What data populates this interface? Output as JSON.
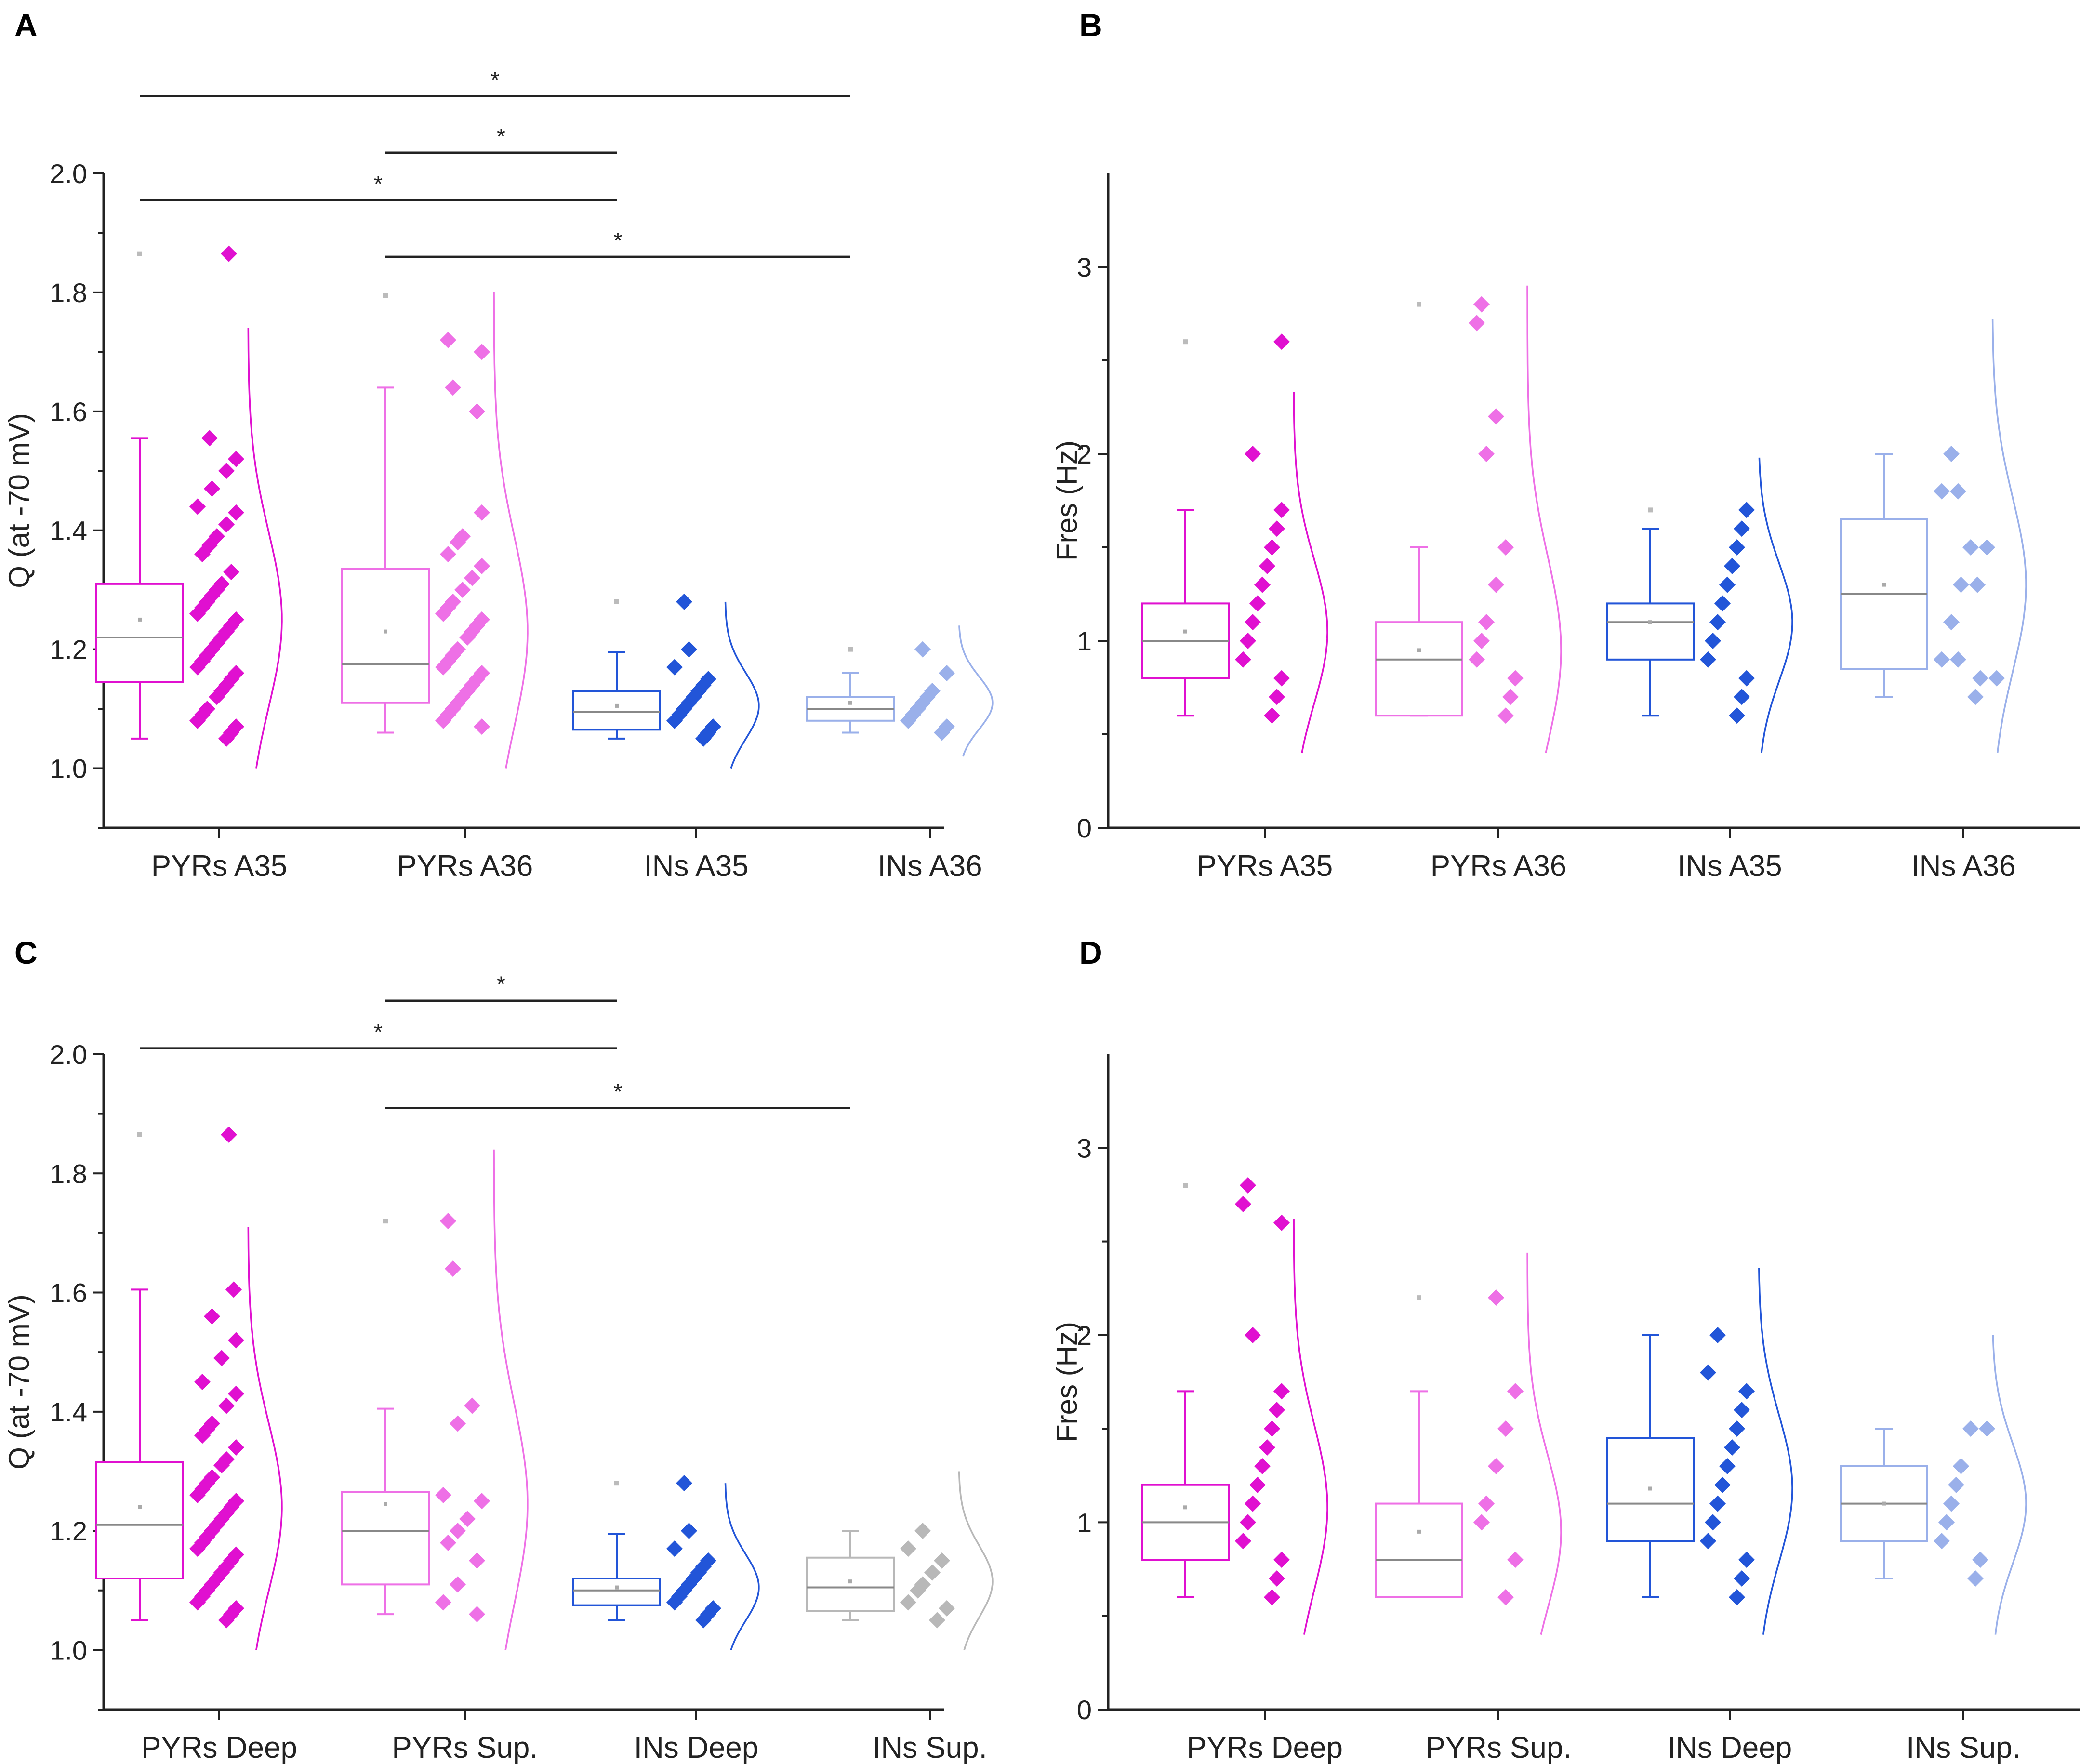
{
  "figure": {
    "panels": [
      {
        "label": "A",
        "chart_data": {
          "type": "box",
          "ylabel": "Q (at -70 mV)",
          "ylim": [
            0.9,
            2.0
          ],
          "yticks": [
            1.0,
            1.2,
            1.4,
            1.6,
            1.8,
            2.0
          ],
          "tick_decimals": 1,
          "categories": [
            "PYRs A35",
            "PYRs A36",
            "INs A35",
            "INs A36"
          ],
          "series": [
            {
              "name": "PYRs A35",
              "color": "#e010d0",
              "whisker_low": 1.05,
              "q1": 1.145,
              "median": 1.22,
              "q3": 1.31,
              "whisker_high": 1.555,
              "mean": 1.25,
              "outliers": [
                1.865
              ],
              "density_range": [
                1.0,
                1.74
              ],
              "points": [
                1.865,
                1.555,
                1.52,
                1.5,
                1.47,
                1.44,
                1.43,
                1.41,
                1.39,
                1.375,
                1.36,
                1.33,
                1.31,
                1.3,
                1.29,
                1.28,
                1.27,
                1.26,
                1.25,
                1.24,
                1.23,
                1.22,
                1.21,
                1.2,
                1.19,
                1.18,
                1.17,
                1.16,
                1.15,
                1.14,
                1.13,
                1.12,
                1.1,
                1.09,
                1.08,
                1.07,
                1.06,
                1.05
              ]
            },
            {
              "name": "PYRs A36",
              "color": "#ee70e6",
              "whisker_low": 1.06,
              "q1": 1.11,
              "median": 1.175,
              "q3": 1.335,
              "whisker_high": 1.64,
              "mean": 1.23,
              "outliers": [
                1.795
              ],
              "density_range": [
                1.0,
                1.8
              ],
              "points": [
                1.72,
                1.7,
                1.64,
                1.6,
                1.43,
                1.39,
                1.38,
                1.36,
                1.34,
                1.32,
                1.3,
                1.28,
                1.27,
                1.26,
                1.25,
                1.24,
                1.23,
                1.22,
                1.2,
                1.19,
                1.18,
                1.17,
                1.16,
                1.15,
                1.14,
                1.13,
                1.12,
                1.11,
                1.1,
                1.09,
                1.08,
                1.07
              ]
            },
            {
              "name": "INs A35",
              "color": "#2255d8",
              "whisker_low": 1.05,
              "q1": 1.065,
              "median": 1.095,
              "q3": 1.13,
              "whisker_high": 1.195,
              "mean": 1.105,
              "outliers": [
                1.28
              ],
              "density_range": [
                1.0,
                1.28
              ],
              "points": [
                1.28,
                1.2,
                1.17,
                1.15,
                1.14,
                1.13,
                1.12,
                1.11,
                1.1,
                1.09,
                1.08,
                1.07,
                1.06,
                1.055,
                1.05
              ]
            },
            {
              "name": "INs A36",
              "color": "#9ab0ea",
              "whisker_low": 1.06,
              "q1": 1.08,
              "median": 1.1,
              "q3": 1.12,
              "whisker_high": 1.16,
              "mean": 1.11,
              "outliers": [
                1.2
              ],
              "density_range": [
                1.02,
                1.24
              ],
              "points": [
                1.2,
                1.16,
                1.13,
                1.12,
                1.11,
                1.1,
                1.09,
                1.08,
                1.07,
                1.06
              ]
            }
          ],
          "significance": [
            {
              "from": "PYRs A35",
              "to": "INs A36",
              "y": 2.13,
              "label": "*"
            },
            {
              "from": "PYRs A36",
              "to": "INs A35",
              "y": 2.035,
              "label": "*"
            },
            {
              "from": "PYRs A35",
              "to": "INs A35",
              "y": 1.955,
              "label": "*"
            },
            {
              "from": "PYRs A36",
              "to": "INs A36",
              "y": 1.86,
              "label": "*"
            }
          ]
        }
      },
      {
        "label": "B",
        "chart_data": {
          "type": "box",
          "ylabel": "Fres (Hz)",
          "ylim": [
            0,
            3.5
          ],
          "yticks": [
            0,
            1,
            2,
            3
          ],
          "tick_decimals": 0,
          "categories": [
            "PYRs A35",
            "PYRs A36",
            "INs A35",
            "INs A36"
          ],
          "series": [
            {
              "name": "PYRs A35",
              "color": "#e010d0",
              "whisker_low": 0.6,
              "q1": 0.8,
              "median": 1.0,
              "q3": 1.2,
              "whisker_high": 1.7,
              "mean": 1.05,
              "outliers": [
                2.6
              ],
              "density_range": [
                0.4,
                2.33
              ],
              "points": [
                2.6,
                2.0,
                1.7,
                1.6,
                1.5,
                1.4,
                1.3,
                1.2,
                1.1,
                1.0,
                0.9,
                0.8,
                0.7,
                0.6
              ]
            },
            {
              "name": "PYRs A36",
              "color": "#ee70e6",
              "whisker_low": 0.6,
              "q1": 0.6,
              "median": 0.9,
              "q3": 1.1,
              "whisker_high": 1.5,
              "mean": 0.95,
              "outliers": [
                2.8
              ],
              "density_range": [
                0.4,
                2.9
              ],
              "points": [
                2.8,
                2.7,
                2.2,
                2.0,
                1.5,
                1.3,
                1.1,
                1.0,
                0.9,
                0.8,
                0.7,
                0.6
              ]
            },
            {
              "name": "INs A35",
              "color": "#2255d8",
              "whisker_low": 0.6,
              "q1": 0.9,
              "median": 1.1,
              "q3": 1.2,
              "whisker_high": 1.6,
              "mean": 1.1,
              "outliers": [
                1.7
              ],
              "density_range": [
                0.4,
                1.98
              ],
              "points": [
                1.7,
                1.6,
                1.5,
                1.4,
                1.3,
                1.2,
                1.1,
                1.0,
                0.9,
                0.8,
                0.7,
                0.6
              ]
            },
            {
              "name": "INs A36",
              "color": "#9ab0ea",
              "whisker_low": 0.7,
              "q1": 0.85,
              "median": 1.25,
              "q3": 1.65,
              "whisker_high": 2.0,
              "mean": 1.3,
              "outliers": [],
              "density_range": [
                0.4,
                2.72
              ],
              "points": [
                2.0,
                1.8,
                1.8,
                1.5,
                1.5,
                1.3,
                1.3,
                1.1,
                0.9,
                0.9,
                0.8,
                0.8,
                0.7
              ]
            }
          ],
          "significance": []
        }
      },
      {
        "label": "C",
        "chart_data": {
          "type": "box",
          "ylabel": "Q (at -70 mV)",
          "ylim": [
            0.9,
            2.0
          ],
          "yticks": [
            1.0,
            1.2,
            1.4,
            1.6,
            1.8,
            2.0
          ],
          "tick_decimals": 1,
          "categories": [
            "PYRs Deep",
            "PYRs Sup.",
            "INs Deep",
            "INs Sup."
          ],
          "series": [
            {
              "name": "PYRs Deep",
              "color": "#e010d0",
              "whisker_low": 1.05,
              "q1": 1.12,
              "median": 1.21,
              "q3": 1.315,
              "whisker_high": 1.605,
              "mean": 1.24,
              "outliers": [
                1.865
              ],
              "density_range": [
                1.0,
                1.71
              ],
              "points": [
                1.865,
                1.605,
                1.56,
                1.52,
                1.49,
                1.45,
                1.43,
                1.41,
                1.38,
                1.37,
                1.36,
                1.34,
                1.32,
                1.31,
                1.29,
                1.28,
                1.27,
                1.26,
                1.25,
                1.24,
                1.23,
                1.22,
                1.21,
                1.2,
                1.19,
                1.18,
                1.17,
                1.16,
                1.15,
                1.14,
                1.13,
                1.12,
                1.11,
                1.1,
                1.09,
                1.08,
                1.07,
                1.06,
                1.05
              ]
            },
            {
              "name": "PYRs Sup.",
              "color": "#ee70e6",
              "whisker_low": 1.06,
              "q1": 1.11,
              "median": 1.2,
              "q3": 1.265,
              "whisker_high": 1.405,
              "mean": 1.245,
              "outliers": [
                1.72
              ],
              "density_range": [
                1.0,
                1.84
              ],
              "points": [
                1.72,
                1.64,
                1.41,
                1.38,
                1.26,
                1.25,
                1.22,
                1.2,
                1.18,
                1.15,
                1.11,
                1.08,
                1.06
              ]
            },
            {
              "name": "INs Deep",
              "color": "#2255d8",
              "whisker_low": 1.05,
              "q1": 1.075,
              "median": 1.1,
              "q3": 1.12,
              "whisker_high": 1.195,
              "mean": 1.105,
              "outliers": [
                1.28
              ],
              "density_range": [
                1.0,
                1.28
              ],
              "points": [
                1.28,
                1.2,
                1.17,
                1.15,
                1.14,
                1.13,
                1.12,
                1.11,
                1.1,
                1.09,
                1.08,
                1.07,
                1.06,
                1.05
              ]
            },
            {
              "name": "INs Sup.",
              "color": "#b8b8b8",
              "whisker_low": 1.05,
              "q1": 1.065,
              "median": 1.105,
              "q3": 1.155,
              "whisker_high": 1.2,
              "mean": 1.115,
              "outliers": [],
              "density_range": [
                1.0,
                1.3
              ],
              "points": [
                1.2,
                1.17,
                1.15,
                1.13,
                1.11,
                1.1,
                1.08,
                1.07,
                1.05
              ]
            }
          ],
          "significance": [
            {
              "from": "PYRs Sup.",
              "to": "INs Deep",
              "y": 2.09,
              "label": "*"
            },
            {
              "from": "PYRs Deep",
              "to": "INs Deep",
              "y": 2.01,
              "label": "*"
            },
            {
              "from": "PYRs Sup.",
              "to": "INs Sup.",
              "y": 1.91,
              "label": "*"
            }
          ]
        }
      },
      {
        "label": "D",
        "chart_data": {
          "type": "box",
          "ylabel": "Fres (Hz)",
          "ylim": [
            0,
            3.5
          ],
          "yticks": [
            0,
            1,
            2,
            3
          ],
          "tick_decimals": 0,
          "categories": [
            "PYRs Deep",
            "PYRs Sup.",
            "INs Deep",
            "INs Sup."
          ],
          "series": [
            {
              "name": "PYRs Deep",
              "color": "#e010d0",
              "whisker_low": 0.6,
              "q1": 0.8,
              "median": 1.0,
              "q3": 1.2,
              "whisker_high": 1.7,
              "mean": 1.08,
              "outliers": [
                2.8
              ],
              "density_range": [
                0.4,
                2.62
              ],
              "points": [
                2.8,
                2.7,
                2.6,
                2.0,
                1.7,
                1.6,
                1.5,
                1.4,
                1.3,
                1.2,
                1.1,
                1.0,
                0.9,
                0.8,
                0.7,
                0.6
              ]
            },
            {
              "name": "PYRs Sup.",
              "color": "#ee70e6",
              "whisker_low": 0.6,
              "q1": 0.6,
              "median": 0.8,
              "q3": 1.1,
              "whisker_high": 1.7,
              "mean": 0.95,
              "outliers": [
                2.2
              ],
              "density_range": [
                0.4,
                2.44
              ],
              "points": [
                2.2,
                1.7,
                1.5,
                1.3,
                1.1,
                1.0,
                0.8,
                0.6
              ]
            },
            {
              "name": "INs Deep",
              "color": "#2255d8",
              "whisker_low": 0.6,
              "q1": 0.9,
              "median": 1.1,
              "q3": 1.45,
              "whisker_high": 2.0,
              "mean": 1.18,
              "outliers": [],
              "density_range": [
                0.4,
                2.36
              ],
              "points": [
                2.0,
                1.8,
                1.7,
                1.6,
                1.5,
                1.4,
                1.3,
                1.2,
                1.1,
                1.0,
                0.9,
                0.8,
                0.7,
                0.6
              ]
            },
            {
              "name": "INs Sup.",
              "color": "#9ab0ea",
              "whisker_low": 0.7,
              "q1": 0.9,
              "median": 1.1,
              "q3": 1.3,
              "whisker_high": 1.5,
              "mean": 1.1,
              "outliers": [],
              "density_range": [
                0.4,
                2.0
              ],
              "points": [
                1.5,
                1.5,
                1.3,
                1.2,
                1.1,
                1.0,
                0.9,
                0.8,
                0.7
              ]
            }
          ],
          "significance": []
        }
      }
    ]
  }
}
